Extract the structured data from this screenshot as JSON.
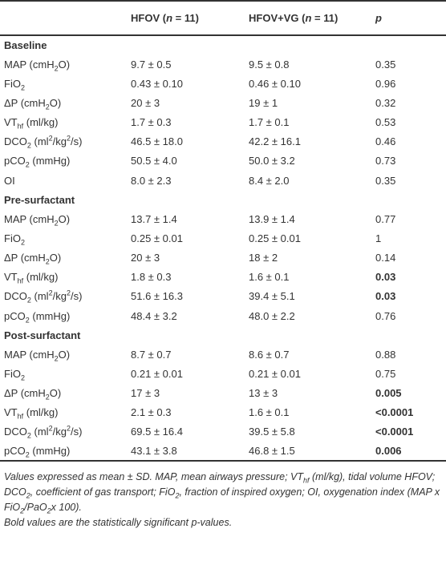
{
  "table": {
    "columns": [
      [
        "HFOV (",
        {
          "i": "n"
        },
        " = 11)"
      ],
      [
        "HFOV+VG (",
        {
          "i": "n"
        },
        " = 11)"
      ],
      [
        {
          "i": "p"
        }
      ]
    ],
    "sections": [
      {
        "title": "Baseline",
        "rows": [
          {
            "label": [
              "MAP (cmH",
              {
                "sub": "2"
              },
              "O)"
            ],
            "hfov": "9.7 ± 0.5",
            "hfov_vg": "9.5 ± 0.8",
            "p": "0.35",
            "significant": false
          },
          {
            "label": [
              "FiO",
              {
                "sub": "2"
              }
            ],
            "hfov": "0.43 ± 0.10",
            "hfov_vg": "0.46 ± 0.10",
            "p": "0.96",
            "significant": false
          },
          {
            "label": [
              "ΔP (cmH",
              {
                "sub": "2"
              },
              "O)"
            ],
            "hfov": "20 ± 3",
            "hfov_vg": "19 ± 1",
            "p": "0.32",
            "significant": false
          },
          {
            "label": [
              "VT",
              {
                "sub": "hf"
              },
              " (ml/kg)"
            ],
            "hfov": "1.7 ± 0.3",
            "hfov_vg": "1.7 ± 0.1",
            "p": "0.53",
            "significant": false
          },
          {
            "label": [
              "DCO",
              {
                "sub": "2"
              },
              " (ml",
              {
                "sup": "2"
              },
              "/kg",
              {
                "sup": "2"
              },
              "/s)"
            ],
            "hfov": "46.5 ± 18.0",
            "hfov_vg": "42.2 ± 16.1",
            "p": "0.46",
            "significant": false
          },
          {
            "label": [
              "pCO",
              {
                "sub": "2"
              },
              " (mmHg)"
            ],
            "hfov": "50.5 ± 4.0",
            "hfov_vg": "50.0 ± 3.2",
            "p": "0.73",
            "significant": false
          },
          {
            "label": [
              "OI"
            ],
            "hfov": "8.0 ± 2.3",
            "hfov_vg": "8.4 ± 2.0",
            "p": "0.35",
            "significant": false
          }
        ]
      },
      {
        "title": "Pre-surfactant",
        "rows": [
          {
            "label": [
              "MAP (cmH",
              {
                "sub": "2"
              },
              "O)"
            ],
            "hfov": "13.7 ± 1.4",
            "hfov_vg": "13.9 ± 1.4",
            "p": "0.77",
            "significant": false
          },
          {
            "label": [
              "FiO",
              {
                "sub": "2"
              }
            ],
            "hfov": "0.25 ± 0.01",
            "hfov_vg": "0.25 ± 0.01",
            "p": "1",
            "significant": false
          },
          {
            "label": [
              "ΔP (cmH",
              {
                "sub": "2"
              },
              "O)"
            ],
            "hfov": "20 ± 3",
            "hfov_vg": "18 ± 2",
            "p": "0.14",
            "significant": false
          },
          {
            "label": [
              "VT",
              {
                "sub": "hf"
              },
              " (ml/kg)"
            ],
            "hfov": "1.8 ± 0.3",
            "hfov_vg": "1.6 ± 0.1",
            "p": "0.03",
            "significant": true
          },
          {
            "label": [
              "DCO",
              {
                "sub": "2"
              },
              " (ml",
              {
                "sup": "2"
              },
              "/kg",
              {
                "sup": "2"
              },
              "/s)"
            ],
            "hfov": "51.6 ± 16.3",
            "hfov_vg": "39.4 ± 5.1",
            "p": "0.03",
            "significant": true
          },
          {
            "label": [
              "pCO",
              {
                "sub": "2"
              },
              " (mmHg)"
            ],
            "hfov": "48.4 ± 3.2",
            "hfov_vg": "48.0 ± 2.2",
            "p": "0.76",
            "significant": false
          }
        ]
      },
      {
        "title": "Post-surfactant",
        "rows": [
          {
            "label": [
              "MAP (cmH",
              {
                "sub": "2"
              },
              "O)"
            ],
            "hfov": "8.7 ± 0.7",
            "hfov_vg": "8.6 ± 0.7",
            "p": "0.88",
            "significant": false
          },
          {
            "label": [
              "FiO",
              {
                "sub": "2"
              }
            ],
            "hfov": "0.21 ± 0.01",
            "hfov_vg": "0.21 ± 0.01",
            "p": "0.75",
            "significant": false
          },
          {
            "label": [
              "ΔP (cmH",
              {
                "sub": "2"
              },
              "O)"
            ],
            "hfov": "17 ± 3",
            "hfov_vg": "13 ± 3",
            "p": "0.005",
            "significant": true
          },
          {
            "label": [
              "VT",
              {
                "sub": "hf"
              },
              " (ml/kg)"
            ],
            "hfov": "2.1 ± 0.3",
            "hfov_vg": "1.6 ± 0.1",
            "p": "<0.0001",
            "significant": true
          },
          {
            "label": [
              "DCO",
              {
                "sub": "2"
              },
              " (ml",
              {
                "sup": "2"
              },
              "/kg",
              {
                "sup": "2"
              },
              "/s)"
            ],
            "hfov": "69.5 ± 16.4",
            "hfov_vg": "39.5 ± 5.8",
            "p": "<0.0001",
            "significant": true
          },
          {
            "label": [
              "pCO",
              {
                "sub": "2"
              },
              " (mmHg)"
            ],
            "hfov": "43.1 ± 3.8",
            "hfov_vg": "46.8 ± 1.5",
            "p": "0.006",
            "significant": true
          }
        ]
      }
    ],
    "notes": [
      [
        "Values expressed as mean ± SD. MAP, mean airways pressure; VT",
        {
          "sub": "hf"
        },
        " (ml/kg), tidal volume HFOV; DCO",
        {
          "sub": "2"
        },
        ", coefficient of gas transport; FiO",
        {
          "sub": "2"
        },
        ", fraction of inspired oxygen; OI, oxygenation index (MAP x FiO",
        {
          "sub": "2"
        },
        "/PaO",
        {
          "sub": "2"
        },
        "x 100)."
      ],
      [
        "Bold values are the statistically significant p-values."
      ]
    ]
  }
}
